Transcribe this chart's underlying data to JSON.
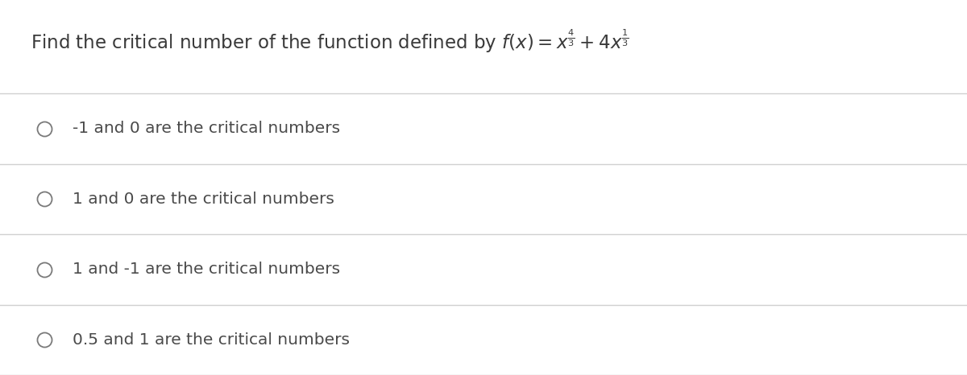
{
  "background_color": "#ffffff",
  "title_text": "Find the critical number of the function defined by $f(x) = x^{\\frac{4}{3}} + 4x^{\\frac{1}{3}}$",
  "title_fontsize": 16.5,
  "title_color": "#3a3a3a",
  "options": [
    "-1 and 0 are the critical numbers",
    "1 and 0 are the critical numbers",
    "1 and -1 are the critical numbers",
    "0.5 and 1 are the critical numbers"
  ],
  "option_fontsize": 14.5,
  "option_color": "#4a4a4a",
  "circle_color": "#7a7a7a",
  "line_color": "#d0d0d0",
  "line_width": 1.0,
  "fig_width": 12.0,
  "fig_height": 4.66,
  "dpi": 100
}
